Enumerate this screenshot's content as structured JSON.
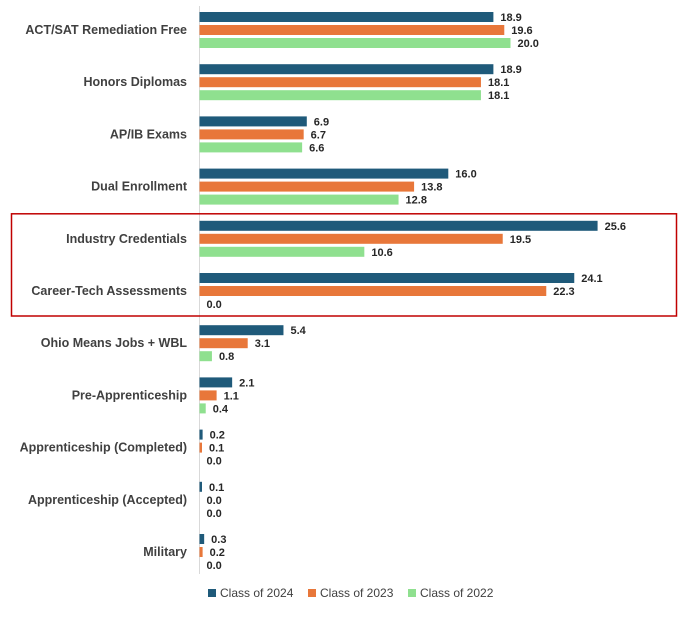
{
  "chart_data": {
    "type": "bar",
    "orientation": "horizontal",
    "title": "",
    "xlabel": "",
    "ylabel": "",
    "xlim": [
      0,
      26
    ],
    "grid": false,
    "legend_position": "bottom",
    "categories": [
      "ACT/SAT Remediation Free",
      "Honors Diplomas",
      "AP/IB Exams",
      "Dual Enrollment",
      "Industry Credentials",
      "Career-Tech Assessments",
      "Ohio Means Jobs + WBL",
      "Pre-Apprenticeship",
      "Apprenticeship (Completed)",
      "Apprenticeship (Accepted)",
      "Military"
    ],
    "series": [
      {
        "name": "Class of 2024",
        "color": "#1f5a7a",
        "values": [
          18.9,
          18.9,
          6.9,
          16.0,
          25.6,
          24.1,
          5.4,
          2.1,
          0.2,
          0.1,
          0.3
        ],
        "labels": [
          "18.9",
          "18.9",
          "6.9",
          "16.0",
          "25.6",
          "24.1",
          "5.4",
          "2.1",
          "0.2",
          "0.1",
          "0.3"
        ]
      },
      {
        "name": "Class of 2023",
        "color": "#e8773a",
        "values": [
          19.6,
          18.1,
          6.7,
          13.8,
          19.5,
          22.3,
          3.1,
          1.1,
          0.1,
          0.0,
          0.2
        ],
        "labels": [
          "19.6",
          "18.1",
          "6.7",
          "13.8",
          "19.5",
          "22.3",
          "3.1",
          "1.1",
          "0.1",
          "0.0",
          "0.2"
        ]
      },
      {
        "name": "Class of 2022",
        "color": "#8fe08f",
        "values": [
          20.0,
          18.1,
          6.6,
          12.8,
          10.6,
          0.0,
          0.8,
          0.4,
          0.0,
          0.0,
          0.0
        ],
        "labels": [
          "20.0",
          "18.1",
          "6.6",
          "12.8",
          "10.6",
          "0.0",
          "0.8",
          "0.4",
          "0.0",
          "0.0",
          "0.0"
        ]
      }
    ],
    "highlight": {
      "categories": [
        "Industry Credentials",
        "Career-Tech Assessments"
      ],
      "color": "#c00000"
    }
  }
}
